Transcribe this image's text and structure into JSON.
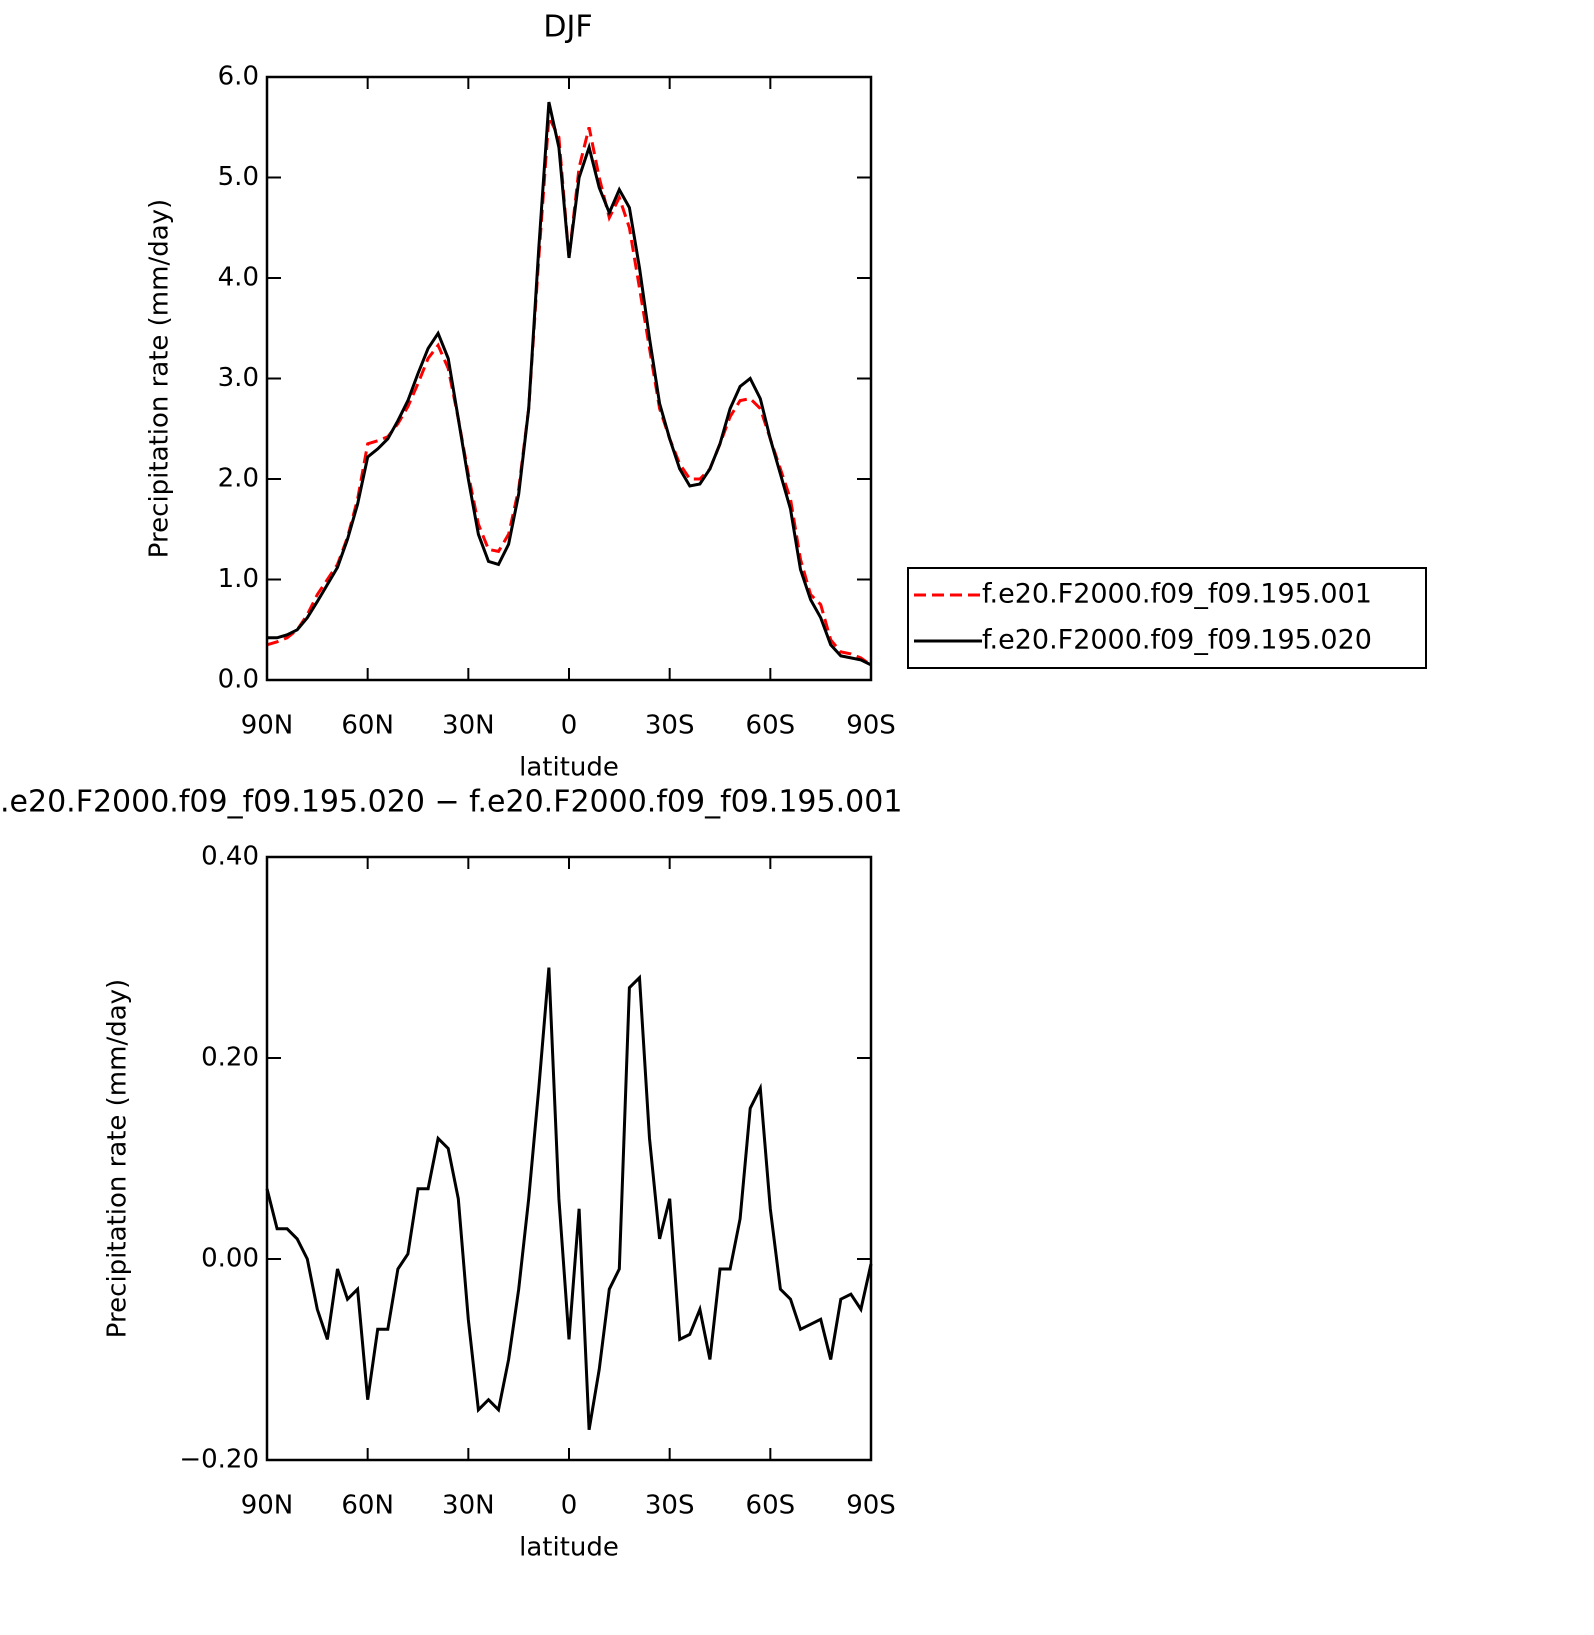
{
  "chart_data": [
    {
      "type": "line",
      "title": "DJF",
      "xlabel": "latitude",
      "ylabel": "Precipitation rate (mm/day)",
      "x": [
        90,
        87,
        84,
        81,
        78,
        75,
        72,
        69,
        66,
        63,
        60,
        57,
        54,
        51,
        48,
        45,
        42,
        39,
        36,
        33,
        30,
        27,
        24,
        21,
        18,
        15,
        12,
        9,
        6,
        3,
        0,
        -3,
        -6,
        -9,
        -12,
        -15,
        -18,
        -21,
        -24,
        -27,
        -30,
        -33,
        -36,
        -39,
        -42,
        -45,
        -48,
        -51,
        -54,
        -57,
        -60,
        -63,
        -66,
        -69,
        -72,
        -75,
        -78,
        -81,
        -84,
        -87,
        -90
      ],
      "xlim": [
        90,
        -90
      ],
      "xticks": [
        {
          "value": 90,
          "label": "90N"
        },
        {
          "value": 60,
          "label": "60N"
        },
        {
          "value": 30,
          "label": "30N"
        },
        0,
        {
          "value": -30,
          "label": "30S"
        },
        {
          "value": -60,
          "label": "60S"
        },
        {
          "value": -90,
          "label": "90S"
        }
      ],
      "ylim": [
        0,
        6
      ],
      "yticks": [
        {
          "value": 0,
          "label": "0.0"
        },
        {
          "value": 1,
          "label": "1.0"
        },
        {
          "value": 2,
          "label": "2.0"
        },
        {
          "value": 3,
          "label": "3.0"
        },
        {
          "value": 4,
          "label": "4.0"
        },
        {
          "value": 5,
          "label": "5.0"
        },
        {
          "value": 6,
          "label": "6.0"
        }
      ],
      "series": [
        {
          "name": "f.e20.F2000.f09_f09.195.001",
          "color": "#ff0000",
          "dash": true,
          "values": [
            0.35,
            0.38,
            0.42,
            0.5,
            0.65,
            0.85,
            1.0,
            1.15,
            1.42,
            1.8,
            2.35,
            2.38,
            2.42,
            2.55,
            2.72,
            2.95,
            3.2,
            3.33,
            3.1,
            2.6,
            2.05,
            1.55,
            1.3,
            1.28,
            1.45,
            1.9,
            2.7,
            4.2,
            5.6,
            5.4,
            4.2,
            5.1,
            5.5,
            5.0,
            4.6,
            4.8,
            4.5,
            3.9,
            3.3,
            2.7,
            2.4,
            2.15,
            2.0,
            2.0,
            2.1,
            2.35,
            2.62,
            2.78,
            2.8,
            2.7,
            2.4,
            2.1,
            1.8,
            1.2,
            0.85,
            0.75,
            0.4,
            0.28,
            0.26,
            0.22,
            0.15
          ]
        },
        {
          "name": "f.e20.F2000.f09_f09.195.020",
          "color": "#000000",
          "dash": false,
          "values": [
            0.42,
            0.42,
            0.45,
            0.5,
            0.62,
            0.78,
            0.95,
            1.12,
            1.4,
            1.75,
            2.22,
            2.3,
            2.4,
            2.58,
            2.78,
            3.05,
            3.3,
            3.45,
            3.2,
            2.6,
            2.0,
            1.45,
            1.18,
            1.15,
            1.35,
            1.85,
            2.7,
            4.3,
            5.75,
            5.3,
            4.2,
            5.0,
            5.3,
            4.9,
            4.65,
            4.88,
            4.7,
            4.1,
            3.4,
            2.75,
            2.4,
            2.1,
            1.93,
            1.95,
            2.1,
            2.35,
            2.7,
            2.92,
            3.0,
            2.8,
            2.4,
            2.05,
            1.7,
            1.1,
            0.8,
            0.62,
            0.35,
            0.24,
            0.22,
            0.2,
            0.15
          ]
        }
      ]
    },
    {
      "type": "line",
      "title": ".e20.F2000.f09_f09.195.020 − f.e20.F2000.f09_f09.195.001",
      "xlabel": "latitude",
      "ylabel": "Precipitation rate (mm/day)",
      "x": [
        90,
        87,
        84,
        81,
        78,
        75,
        72,
        69,
        66,
        63,
        60,
        57,
        54,
        51,
        48,
        45,
        42,
        39,
        36,
        33,
        30,
        27,
        24,
        21,
        18,
        15,
        12,
        9,
        6,
        3,
        0,
        -3,
        -6,
        -9,
        -12,
        -15,
        -18,
        -21,
        -24,
        -27,
        -30,
        -33,
        -36,
        -39,
        -42,
        -45,
        -48,
        -51,
        -54,
        -57,
        -60,
        -63,
        -66,
        -69,
        -72,
        -75,
        -78,
        -81,
        -84,
        -87,
        -90
      ],
      "xlim": [
        90,
        -90
      ],
      "xticks": [
        {
          "value": 90,
          "label": "90N"
        },
        {
          "value": 60,
          "label": "60N"
        },
        {
          "value": 30,
          "label": "30N"
        },
        0,
        {
          "value": -30,
          "label": "30S"
        },
        {
          "value": -60,
          "label": "60S"
        },
        {
          "value": -90,
          "label": "90S"
        }
      ],
      "ylim": [
        -0.2,
        0.4
      ],
      "yticks": [
        {
          "value": -0.2,
          "label": "−0.20"
        },
        {
          "value": 0,
          "label": "0.00"
        },
        {
          "value": 0.2,
          "label": "0.20"
        },
        {
          "value": 0.4,
          "label": "0.40"
        }
      ],
      "series": [
        {
          "color": "#000000",
          "values": [
            0.07,
            0.03,
            0.03,
            0.02,
            0.0,
            -0.05,
            -0.08,
            -0.01,
            -0.04,
            -0.03,
            -0.14,
            -0.07,
            -0.07,
            -0.01,
            0.005,
            0.07,
            0.07,
            0.12,
            0.11,
            0.06,
            -0.06,
            -0.15,
            -0.14,
            -0.15,
            -0.1,
            -0.03,
            0.06,
            0.17,
            0.29,
            0.06,
            -0.08,
            0.05,
            -0.17,
            -0.11,
            -0.03,
            -0.01,
            0.27,
            0.28,
            0.12,
            0.02,
            0.06,
            -0.08,
            -0.075,
            -0.05,
            -0.1,
            -0.01,
            -0.01,
            0.04,
            0.15,
            0.17,
            0.05,
            -0.03,
            -0.04,
            -0.07,
            -0.065,
            -0.06,
            -0.1,
            -0.04,
            -0.035,
            -0.05,
            -0.005
          ]
        }
      ]
    }
  ]
}
